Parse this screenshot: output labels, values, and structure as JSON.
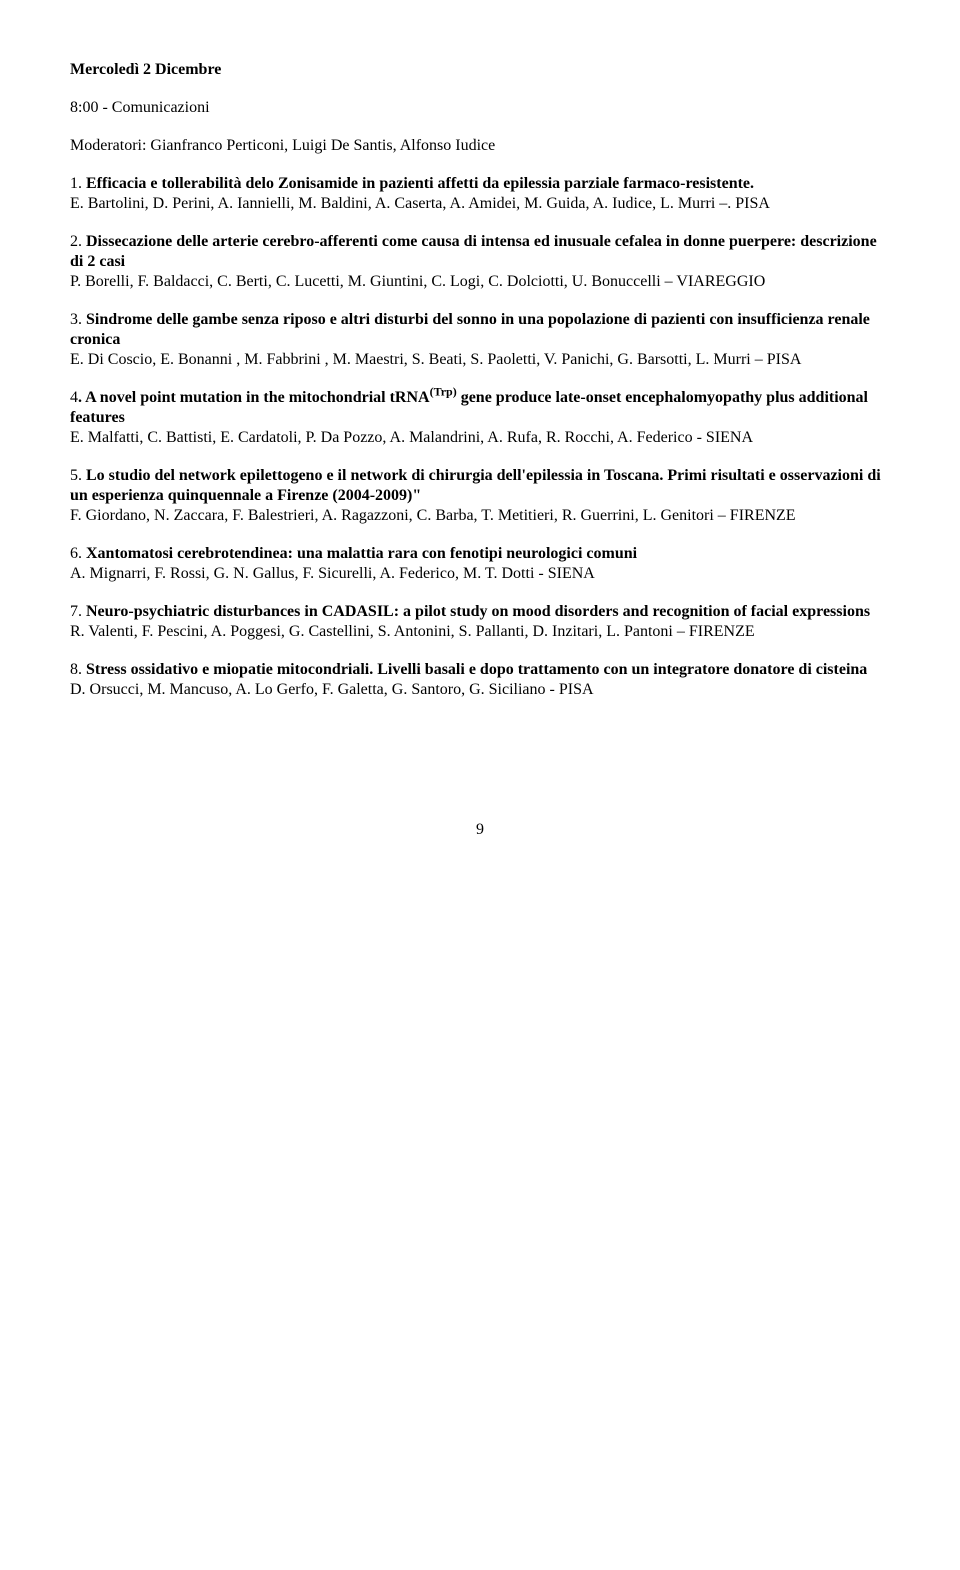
{
  "header": {
    "day": "Mercoledì 2 Dicembre",
    "time_slot": "8:00 - Comunicazioni",
    "moderators": "Moderatori: Gianfranco Perticoni, Luigi De Santis, Alfonso Iudice"
  },
  "entries": [
    {
      "num": "1.",
      "title": "Efficacia e tollerabilità delo Zonisamide in pazienti affetti da epilessia parziale farmaco-resistente.",
      "authors": "E. Bartolini, D. Perini, A. Iannielli, M. Baldini, A. Caserta, A. Amidei, M. Guida, A. Iudice, L. Murri –. PISA"
    },
    {
      "num": "2.",
      "title": "Dissecazione delle arterie cerebro-afferenti come causa di intensa ed inusuale cefalea in donne puerpere: descrizione di 2 casi",
      "authors": "P. Borelli, F. Baldacci, C. Berti, C. Lucetti, M. Giuntini, C. Logi, C. Dolciotti, U. Bonuccelli – VIAREGGIO"
    },
    {
      "num": "3.",
      "title": "Sindrome delle gambe senza riposo e altri disturbi del sonno in una popolazione di pazienti con insufficienza renale cronica",
      "authors": "E. Di Coscio, E. Bonanni , M. Fabbrini , M. Maestri, S. Beati, S. Paoletti,  V. Panichi, G. Barsotti, L. Murri – PISA"
    },
    {
      "num": "4",
      "title_pre": ". A novel point mutation in the mitochondrial tRNA",
      "title_sup": "(Trp)",
      "title_post": " gene produce late-onset encephalomyopathy plus additional features",
      "authors": "E. Malfatti, C. Battisti, E. Cardatoli, P. Da Pozzo, A. Malandrini, A. Rufa, R. Rocchi, A. Federico - SIENA"
    },
    {
      "num": "5.",
      "title": "Lo studio del network epilettogeno e il network di chirurgia dell'epilessia in Toscana. Primi risultati e osservazioni di un esperienza quinquennale a Firenze (2004-2009)\"",
      "authors": "F. Giordano, N. Zaccara, F. Balestrieri, A. Ragazzoni, C. Barba, T. Metitieri, R. Guerrini, L. Genitori – FIRENZE"
    },
    {
      "num": "6.",
      "title": "Xantomatosi cerebrotendinea: una malattia rara con fenotipi neurologici comuni",
      "authors": "A. Mignarri, F. Rossi, G. N. Gallus, F. Sicurelli, A. Federico, M. T. Dotti - SIENA"
    },
    {
      "num": "7.",
      "title": "Neuro-psychiatric disturbances in CADASIL: a pilot study on mood disorders and recognition of facial expressions",
      "authors": "R. Valenti, F. Pescini, A. Poggesi, G. Castellini, S. Antonini, S. Pallanti, D. Inzitari, L. Pantoni – FIRENZE"
    },
    {
      "num": "8.",
      "title": "Stress ossidativo e miopatie mitocondriali.  Livelli basali e dopo trattamento con un integratore donatore di cisteina",
      "authors": "D. Orsucci, M. Mancuso, A. Lo Gerfo, F. Galetta, G. Santoro, G. Siciliano - PISA"
    }
  ],
  "page_number": "9"
}
